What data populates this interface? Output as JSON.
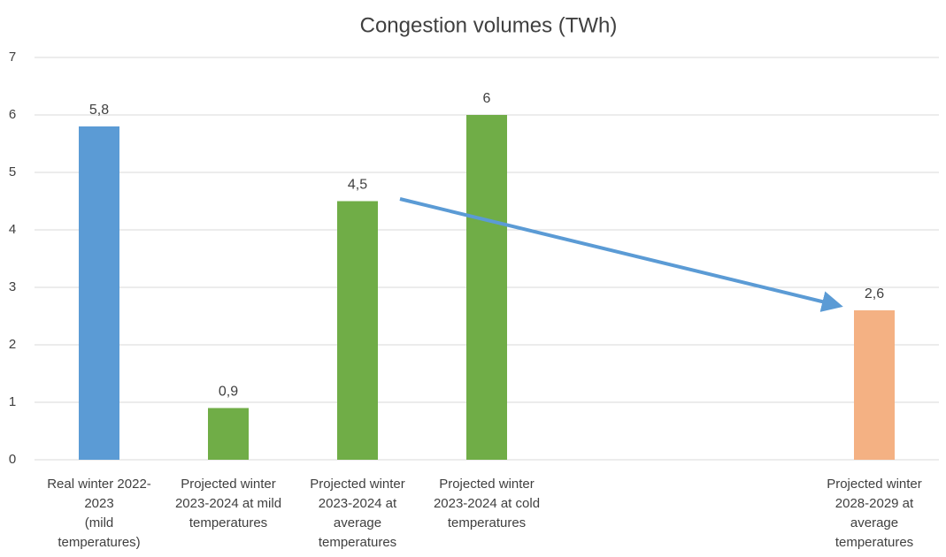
{
  "chart_data": {
    "type": "bar",
    "title": "Congestion volumes (TWh)",
    "categories": [
      "Real winter 2022-\n2023\n(mild\ntemperatures)",
      "Projected winter\n2023-2024 at mild\ntemperatures",
      "Projected winter\n2023-2024 at\naverage\ntemperatures",
      "Projected winter\n2023-2024 at cold\ntemperatures",
      null,
      null,
      "Projected winter\n2028-2029 at\naverage\ntemperatures"
    ],
    "values": [
      5.8,
      0.9,
      4.5,
      6,
      null,
      null,
      2.6
    ],
    "value_labels": [
      "5,8",
      "0,9",
      "4,5",
      "6",
      null,
      null,
      "2,6"
    ],
    "colors": [
      "#5b9bd5",
      "#70ad47",
      "#70ad47",
      "#70ad47",
      null,
      null,
      "#f4b183"
    ],
    "ylim": [
      0,
      7
    ],
    "yticks": [
      0,
      1,
      2,
      3,
      4,
      5,
      6,
      7
    ],
    "grid": true
  }
}
